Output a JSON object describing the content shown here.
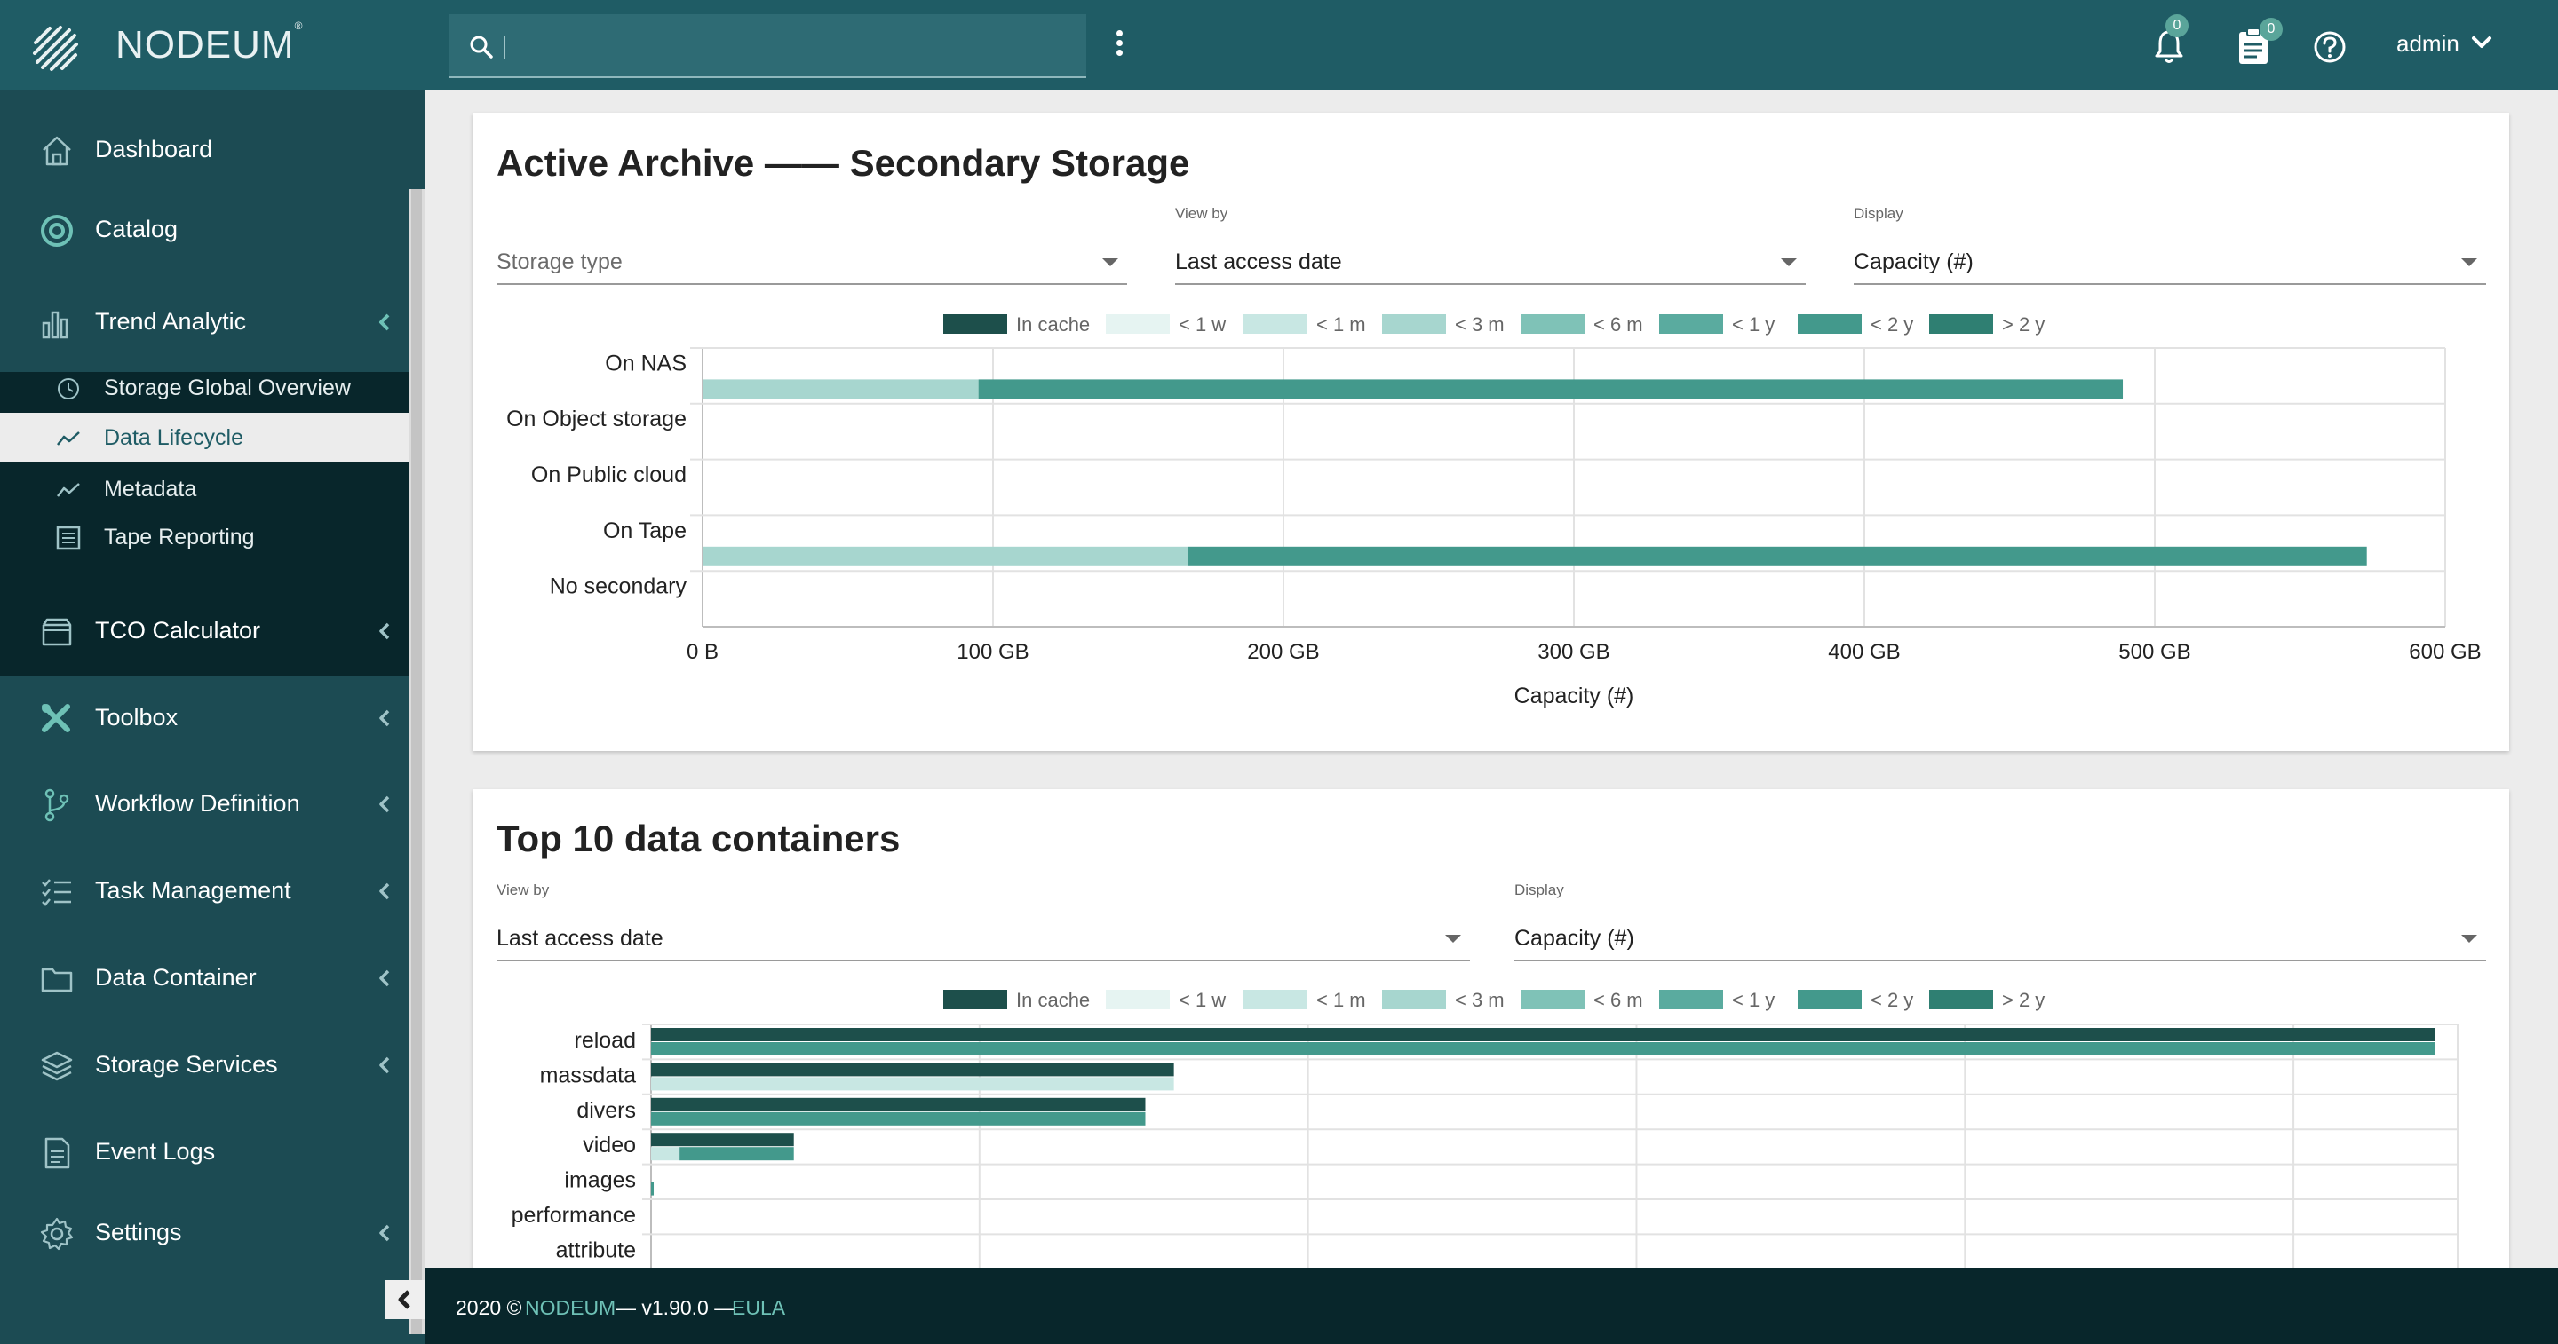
{
  "app": {
    "name": "NODEUM",
    "trademark": "®"
  },
  "header": {
    "search_placeholder": "",
    "notifications_count": "0",
    "tasks_count": "0",
    "user": "admin"
  },
  "sidebar": {
    "items": [
      {
        "label": "Dashboard",
        "icon": "home-icon"
      },
      {
        "label": "Catalog",
        "icon": "target-icon"
      },
      {
        "label": "Trend Analytic",
        "icon": "bar-chart-icon",
        "expanded": true
      },
      {
        "label": "TCO Calculator",
        "icon": "wallet-icon"
      },
      {
        "label": "Toolbox",
        "icon": "tools-icon"
      },
      {
        "label": "Workflow Definition",
        "icon": "branch-icon"
      },
      {
        "label": "Task Management",
        "icon": "checklist-icon"
      },
      {
        "label": "Data Container",
        "icon": "folder-icon"
      },
      {
        "label": "Storage Services",
        "icon": "layers-icon"
      },
      {
        "label": "Event Logs",
        "icon": "document-icon"
      },
      {
        "label": "Settings",
        "icon": "gear-icon"
      }
    ],
    "sub_items": [
      {
        "label": "Storage Global Overview",
        "icon": "clock-icon"
      },
      {
        "label": "Data Lifecycle",
        "icon": "trend-icon",
        "active": true
      },
      {
        "label": "Metadata",
        "icon": "trend-icon"
      },
      {
        "label": "Tape Reporting",
        "icon": "report-icon"
      }
    ]
  },
  "footer": {
    "year": "2020 ©",
    "brand": "NODEUM",
    "version": "— v1.90.0 —",
    "eula": "EULA"
  },
  "colors": {
    "in_cache": "#1d4f4b",
    "lt_1w": "#e6f4f2",
    "lt_1m": "#c8e7e3",
    "lt_3m": "#a7d6cf",
    "lt_6m": "#7fc2b7",
    "lt_1y": "#5aab9f",
    "lt_2y": "#43998c",
    "gt_2y": "#2f7f72"
  },
  "card1": {
    "title": "Active Archive —— Secondary Storage",
    "storage_type": {
      "placeholder": "Storage type"
    },
    "view_by": {
      "label": "View by",
      "value": "Last access date"
    },
    "display": {
      "label": "Display",
      "value": "Capacity (#)"
    }
  },
  "card2": {
    "title": "Top 10 data containers",
    "view_by": {
      "label": "View by",
      "value": "Last access date"
    },
    "display": {
      "label": "Display",
      "value": "Capacity (#)"
    }
  },
  "legend": [
    "In cache",
    "< 1 w",
    "< 1 m",
    "< 3 m",
    "< 6 m",
    "< 1 y",
    "< 2 y",
    "> 2 y"
  ],
  "chart_data": [
    {
      "type": "bar",
      "orientation": "horizontal",
      "stacked": true,
      "categories": [
        "On NAS",
        "On Object storage",
        "On Public cloud",
        "On Tape",
        "No secondary"
      ],
      "series": [
        {
          "name": "< 3 m",
          "values": [
            95,
            0,
            0,
            167,
            0
          ]
        },
        {
          "name": "< 2 y",
          "values": [
            394,
            0,
            0,
            406,
            0
          ]
        }
      ],
      "xlabel": "Capacity (#)",
      "xlim": [
        0,
        600
      ],
      "xticks": [
        "0 B",
        "100 GB",
        "200 GB",
        "300 GB",
        "400 GB",
        "500 GB",
        "600 GB"
      ],
      "grid": true,
      "legend_position": "top"
    },
    {
      "type": "bar",
      "orientation": "horizontal",
      "grouped": true,
      "categories": [
        "reload",
        "massdata",
        "divers",
        "video",
        "images",
        "performance",
        "attribute"
      ],
      "series": [
        {
          "name": "In cache",
          "values": [
            100,
            29.3,
            27.7,
            8.0,
            0,
            0,
            0
          ]
        },
        {
          "name": "< 1 m",
          "values": [
            0,
            29.3,
            0,
            1.6,
            0,
            0,
            0
          ]
        },
        {
          "name": "< 2 y",
          "values": [
            100,
            0,
            27.7,
            6.4,
            0.15,
            0,
            0
          ]
        }
      ],
      "grid": true,
      "legend_position": "top"
    }
  ]
}
